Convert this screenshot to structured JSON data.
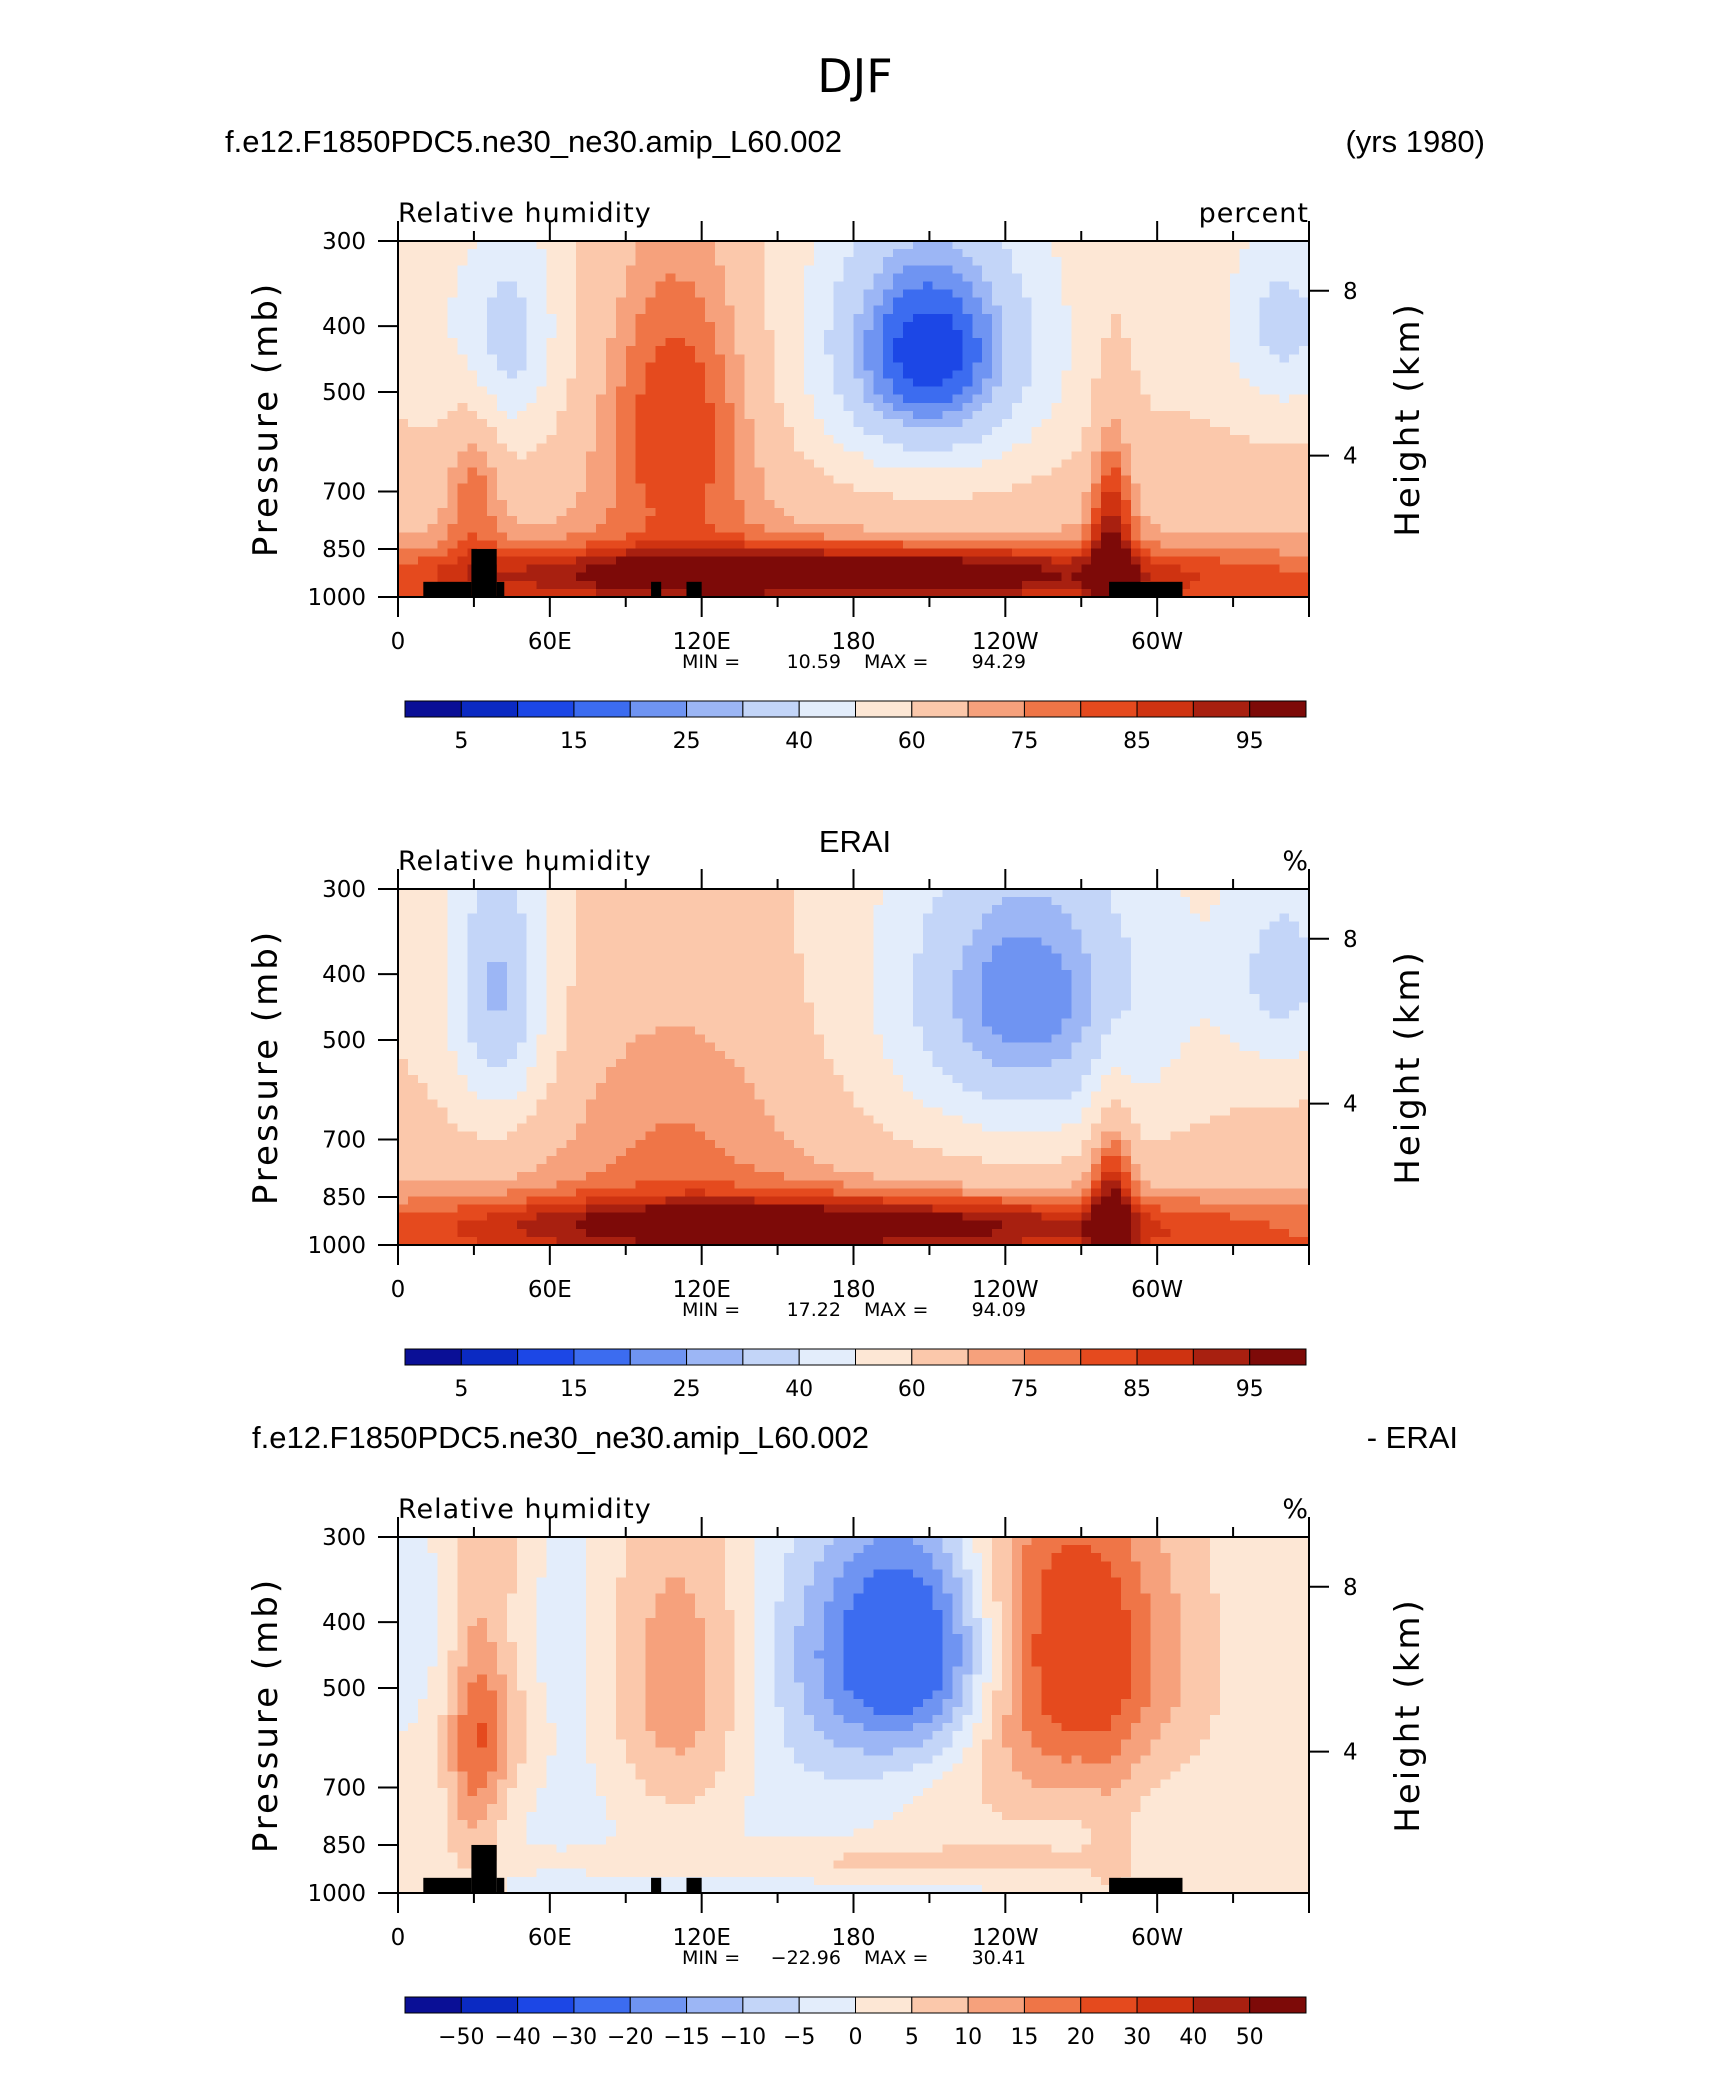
{
  "figure": {
    "title": "DJF"
  },
  "chart_data": [
    {
      "type": "heatmap",
      "case_title": "f.e12.F1850PDC5.ne30_ne30.amip_L60.002",
      "case_right": "(yrs 1980)",
      "variable": "Relative humidity",
      "units": "percent",
      "ylabel": "Pressure (mb)",
      "ylabel_right": "Height (km)",
      "y_ticks": [
        "300",
        "400",
        "500",
        "700",
        "850",
        "1000"
      ],
      "y_right_ticks": [
        "8",
        "4"
      ],
      "x_ticks": [
        "0",
        "60E",
        "120E",
        "180",
        "120W",
        "60W"
      ],
      "stats": {
        "min_label": "MIN =",
        "min": "10.59",
        "max_label": "MAX =",
        "max": "94.29"
      },
      "colorbar_ticks": [
        "5",
        "15",
        "25",
        "40",
        "60",
        "75",
        "85",
        "95"
      ],
      "levels": [
        5,
        10,
        15,
        20,
        25,
        30,
        40,
        50,
        60,
        70,
        75,
        80,
        85,
        90,
        95
      ],
      "mask": true
    },
    {
      "type": "heatmap",
      "case_title": "ERAI",
      "case_right": "",
      "variable": "Relative humidity",
      "units": "%",
      "ylabel": "Pressure (mb)",
      "ylabel_right": "Height (km)",
      "y_ticks": [
        "300",
        "400",
        "500",
        "700",
        "850",
        "1000"
      ],
      "y_right_ticks": [
        "8",
        "4"
      ],
      "x_ticks": [
        "0",
        "60E",
        "120E",
        "180",
        "120W",
        "60W"
      ],
      "stats": {
        "min_label": "MIN =",
        "min": "17.22",
        "max_label": "MAX =",
        "max": "94.09"
      },
      "colorbar_ticks": [
        "5",
        "15",
        "25",
        "40",
        "60",
        "75",
        "85",
        "95"
      ],
      "levels": [
        5,
        10,
        15,
        20,
        25,
        30,
        40,
        50,
        60,
        70,
        75,
        80,
        85,
        90,
        95
      ],
      "mask": false
    },
    {
      "type": "heatmap",
      "case_title": "f.e12.F1850PDC5.ne30_ne30.amip_L60.002",
      "case_right": "- ERAI",
      "variable": "Relative humidity",
      "units": "%",
      "ylabel": "Pressure (mb)",
      "ylabel_right": "Height (km)",
      "y_ticks": [
        "300",
        "400",
        "500",
        "700",
        "850",
        "1000"
      ],
      "y_right_ticks": [
        "8",
        "4"
      ],
      "x_ticks": [
        "0",
        "60E",
        "120E",
        "180",
        "120W",
        "60W"
      ],
      "stats": {
        "min_label": "MIN =",
        "min": "−22.96",
        "max_label": "MAX =",
        "max": "30.41"
      },
      "colorbar_ticks": [
        "−50",
        "−40",
        "−30",
        "−20",
        "−15",
        "−10",
        "−5",
        "0",
        "5",
        "10",
        "15",
        "20",
        "30",
        "40",
        "50"
      ],
      "levels": [
        -50,
        -40,
        -30,
        -20,
        -15,
        -10,
        -5,
        0,
        5,
        10,
        15,
        20,
        30,
        40,
        50
      ],
      "mask": true
    }
  ],
  "colors": {
    "palette": [
      "#0a0f96",
      "#0b2ac3",
      "#1c47e6",
      "#3c6cf0",
      "#6f94f2",
      "#9cb6f5",
      "#c3d5f8",
      "#e3edfb",
      "#fde7d5",
      "#fbc8ab",
      "#f6a17c",
      "#ef7547",
      "#e54a1e",
      "#cf3311",
      "#a82010",
      "#7d0a08"
    ],
    "mask": "#000000",
    "frame": "#000000"
  }
}
